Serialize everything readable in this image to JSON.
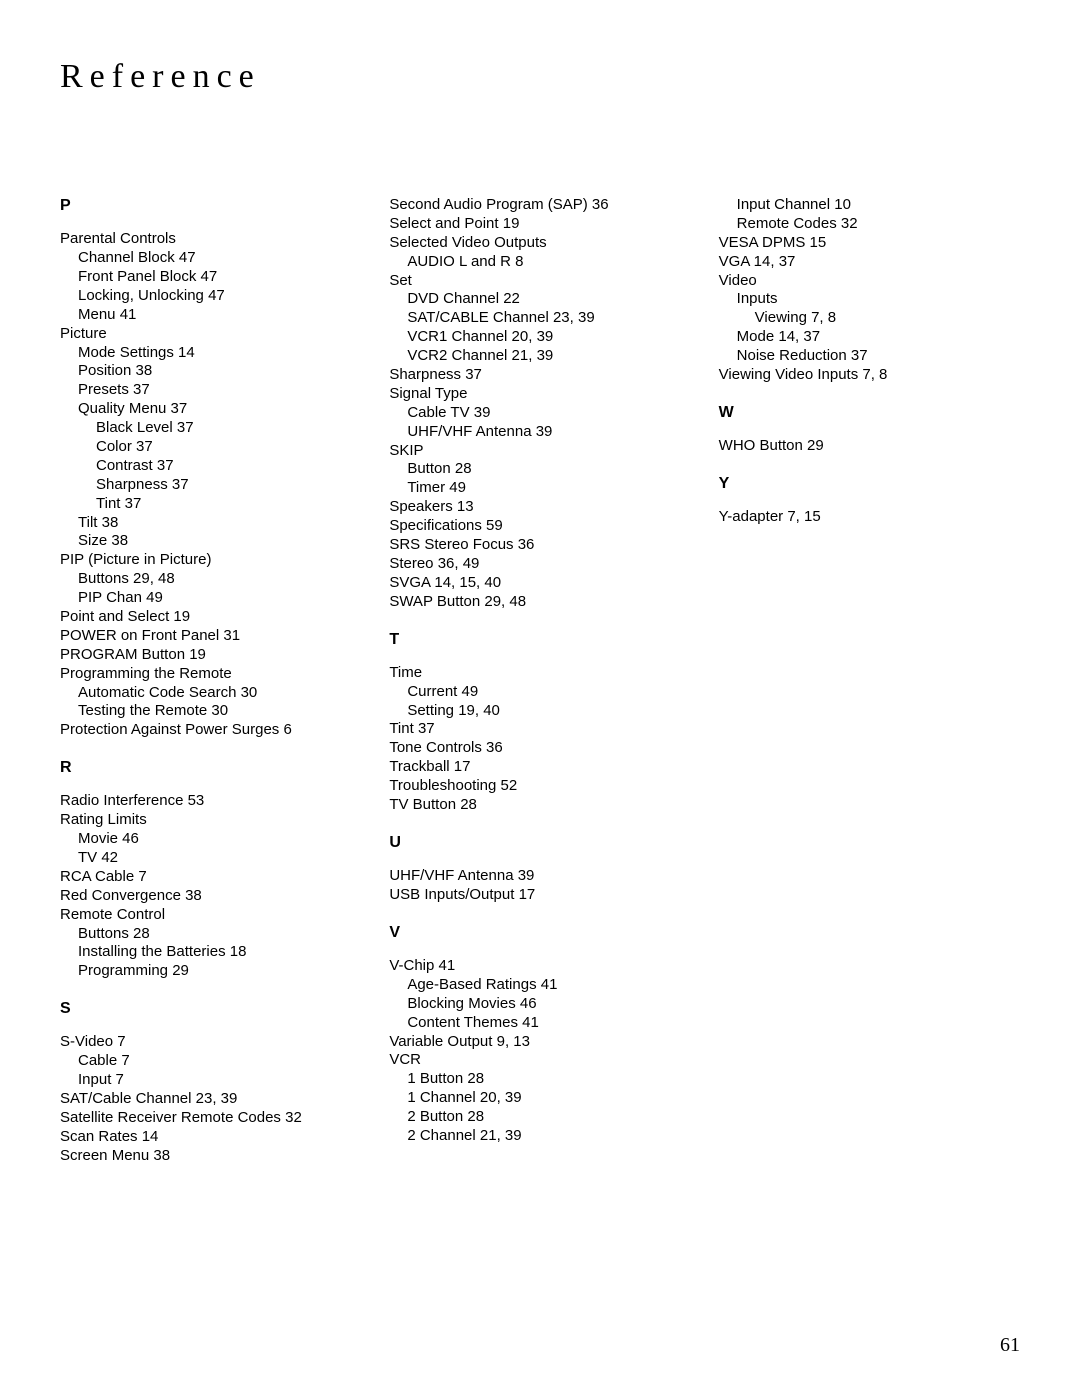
{
  "title": "Reference",
  "page_number": "61",
  "columns": [
    [
      {
        "type": "letter",
        "text": "P"
      },
      {
        "type": "entry",
        "text": "Parental Controls"
      },
      {
        "type": "sub",
        "indent": 1,
        "text": "Channel Block  47"
      },
      {
        "type": "sub",
        "indent": 1,
        "text": "Front Panel Block  47"
      },
      {
        "type": "sub",
        "indent": 1,
        "text": "Locking, Unlocking  47"
      },
      {
        "type": "sub",
        "indent": 1,
        "text": "Menu  41"
      },
      {
        "type": "entry",
        "text": "Picture"
      },
      {
        "type": "sub",
        "indent": 1,
        "text": "Mode Settings  14"
      },
      {
        "type": "sub",
        "indent": 1,
        "text": "Position  38"
      },
      {
        "type": "sub",
        "indent": 1,
        "text": "Presets  37"
      },
      {
        "type": "sub",
        "indent": 1,
        "text": "Quality Menu  37"
      },
      {
        "type": "sub",
        "indent": 2,
        "text": "Black Level  37"
      },
      {
        "type": "sub",
        "indent": 2,
        "text": "Color  37"
      },
      {
        "type": "sub",
        "indent": 2,
        "text": "Contrast  37"
      },
      {
        "type": "sub",
        "indent": 2,
        "text": "Sharpness  37"
      },
      {
        "type": "sub",
        "indent": 2,
        "text": "Tint  37"
      },
      {
        "type": "sub",
        "indent": 1,
        "text": "Tilt  38"
      },
      {
        "type": "sub",
        "indent": 1,
        "text": "Size  38"
      },
      {
        "type": "entry",
        "text": "PIP (Picture in Picture)"
      },
      {
        "type": "sub",
        "indent": 1,
        "text": "Buttons  29, 48"
      },
      {
        "type": "sub",
        "indent": 1,
        "text": "PIP Chan  49"
      },
      {
        "type": "entry",
        "text": "Point and Select  19"
      },
      {
        "type": "entry",
        "text": "POWER on Front Panel  31"
      },
      {
        "type": "entry",
        "text": "PROGRAM Button  19"
      },
      {
        "type": "entry",
        "text": "Programming the Remote"
      },
      {
        "type": "sub",
        "indent": 1,
        "text": "Automatic Code Search  30"
      },
      {
        "type": "sub",
        "indent": 1,
        "text": "Testing the Remote  30"
      },
      {
        "type": "entry",
        "text": "Protection Against Power Surges  6"
      },
      {
        "type": "letter",
        "text": "R"
      },
      {
        "type": "entry",
        "text": "Radio Interference  53"
      },
      {
        "type": "entry",
        "text": "Rating Limits"
      },
      {
        "type": "sub",
        "indent": 1,
        "text": "Movie  46"
      },
      {
        "type": "sub",
        "indent": 1,
        "text": "TV  42"
      },
      {
        "type": "entry",
        "text": "RCA Cable  7"
      },
      {
        "type": "entry",
        "text": "Red Convergence  38"
      },
      {
        "type": "entry",
        "text": "Remote Control"
      },
      {
        "type": "sub",
        "indent": 1,
        "text": "Buttons  28"
      },
      {
        "type": "sub",
        "indent": 1,
        "text": "Installing the Batteries  18"
      },
      {
        "type": "sub",
        "indent": 1,
        "text": "Programming  29"
      },
      {
        "type": "letter",
        "text": "S"
      },
      {
        "type": "entry",
        "text": "S-Video  7"
      },
      {
        "type": "sub",
        "indent": 1,
        "text": "Cable  7"
      },
      {
        "type": "sub",
        "indent": 1,
        "text": "Input  7"
      },
      {
        "type": "entry",
        "text": "SAT/Cable Channel  23, 39"
      },
      {
        "type": "entry",
        "text": "Satellite Receiver Remote Codes  32"
      },
      {
        "type": "entry",
        "text": "Scan Rates  14"
      },
      {
        "type": "entry",
        "text": "Screen Menu  38"
      }
    ],
    [
      {
        "type": "entry",
        "text": "Second Audio Program (SAP)  36"
      },
      {
        "type": "entry",
        "text": "Select and Point  19"
      },
      {
        "type": "entry",
        "text": "Selected Video Outputs"
      },
      {
        "type": "sub",
        "indent": 1,
        "text": "AUDIO L and R  8"
      },
      {
        "type": "entry",
        "text": "Set"
      },
      {
        "type": "sub",
        "indent": 1,
        "text": "DVD Channel  22"
      },
      {
        "type": "sub",
        "indent": 1,
        "text": "SAT/CABLE Channel  23, 39"
      },
      {
        "type": "sub",
        "indent": 1,
        "text": "VCR1 Channel  20, 39"
      },
      {
        "type": "sub",
        "indent": 1,
        "text": "VCR2 Channel  21, 39"
      },
      {
        "type": "entry",
        "text": "Sharpness  37"
      },
      {
        "type": "entry",
        "text": "Signal Type"
      },
      {
        "type": "sub",
        "indent": 1,
        "text": "Cable TV  39"
      },
      {
        "type": "sub",
        "indent": 1,
        "text": "UHF/VHF Antenna  39"
      },
      {
        "type": "entry",
        "text": "SKIP"
      },
      {
        "type": "sub",
        "indent": 1,
        "text": "Button  28"
      },
      {
        "type": "sub",
        "indent": 1,
        "text": "Timer  49"
      },
      {
        "type": "entry",
        "text": "Speakers  13"
      },
      {
        "type": "entry",
        "text": "Specifications  59"
      },
      {
        "type": "entry",
        "text": "SRS Stereo Focus 36"
      },
      {
        "type": "entry",
        "text": "Stereo  36, 49"
      },
      {
        "type": "entry",
        "text": "SVGA  14, 15, 40"
      },
      {
        "type": "entry",
        "text": "SWAP Button  29, 48"
      },
      {
        "type": "letter",
        "text": "T"
      },
      {
        "type": "entry",
        "text": "Time"
      },
      {
        "type": "sub",
        "indent": 1,
        "text": "Current  49"
      },
      {
        "type": "sub",
        "indent": 1,
        "text": "Setting  19, 40"
      },
      {
        "type": "entry",
        "text": "Tint  37"
      },
      {
        "type": "entry",
        "text": "Tone Controls  36"
      },
      {
        "type": "entry",
        "text": "Trackball  17"
      },
      {
        "type": "entry",
        "text": "Troubleshooting  52"
      },
      {
        "type": "entry",
        "text": "TV Button  28"
      },
      {
        "type": "letter",
        "text": "U"
      },
      {
        "type": "entry",
        "text": "UHF/VHF Antenna  39"
      },
      {
        "type": "entry",
        "text": "USB Inputs/Output  17"
      },
      {
        "type": "letter",
        "text": "V"
      },
      {
        "type": "entry",
        "text": "V-Chip  41"
      },
      {
        "type": "sub",
        "indent": 1,
        "text": "Age-Based Ratings  41"
      },
      {
        "type": "sub",
        "indent": 1,
        "text": "Blocking Movies  46"
      },
      {
        "type": "sub",
        "indent": 1,
        "text": "Content Themes  41"
      },
      {
        "type": "entry",
        "text": "Variable Output  9, 13"
      },
      {
        "type": "entry",
        "text": "VCR"
      },
      {
        "type": "sub",
        "indent": 1,
        "text": "1 Button  28"
      },
      {
        "type": "sub",
        "indent": 1,
        "text": "1 Channel  20, 39"
      },
      {
        "type": "sub",
        "indent": 1,
        "text": "2 Button  28"
      },
      {
        "type": "sub",
        "indent": 1,
        "text": "2 Channel  21, 39"
      }
    ],
    [
      {
        "type": "sub",
        "indent": 1,
        "text": "Input Channel  10"
      },
      {
        "type": "sub",
        "indent": 1,
        "text": "Remote Codes  32"
      },
      {
        "type": "entry",
        "text": "VESA DPMS  15"
      },
      {
        "type": "entry",
        "text": "VGA  14, 37"
      },
      {
        "type": "entry",
        "text": "Video"
      },
      {
        "type": "sub",
        "indent": 1,
        "text": "Inputs"
      },
      {
        "type": "sub",
        "indent": 2,
        "text": "Viewing  7, 8"
      },
      {
        "type": "sub",
        "indent": 1,
        "text": "Mode  14, 37"
      },
      {
        "type": "sub",
        "indent": 1,
        "text": "Noise Reduction  37"
      },
      {
        "type": "entry",
        "text": "Viewing Video Inputs  7, 8"
      },
      {
        "type": "letter",
        "text": "W"
      },
      {
        "type": "entry",
        "text": "WHO Button  29"
      },
      {
        "type": "letter",
        "text": "Y"
      },
      {
        "type": "entry",
        "text": "Y-adapter  7, 15"
      }
    ]
  ]
}
